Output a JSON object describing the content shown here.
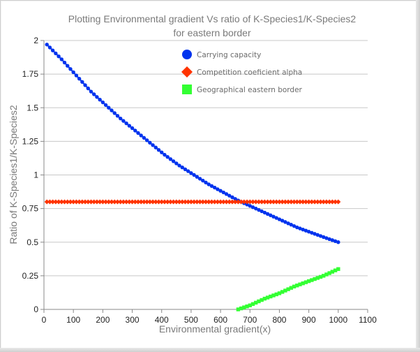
{
  "chart_data": {
    "type": "scatter",
    "title": "Plotting Environmental gradient Vs ratio of K-Species1/K-Species2",
    "subtitle": "for eastern border",
    "xlabel": "Environmental gradient(x)",
    "ylabel": "Ratio of K-Species1/K-Species2",
    "xlim": [
      0,
      1100
    ],
    "ylim": [
      0,
      2
    ],
    "x_ticks": [
      "0",
      "100",
      "200",
      "300",
      "400",
      "500",
      "600",
      "700",
      "800",
      "900",
      "1000",
      "1100"
    ],
    "y_ticks": [
      "0",
      "0.25",
      "0.5",
      "0.75",
      "1",
      "1.25",
      "1.5",
      "1.75",
      "2"
    ],
    "grid": "horizontal",
    "legend_placement": "top-center",
    "series": [
      {
        "name": "Carrying capacity",
        "marker": "circle",
        "color": "#0033ee",
        "x": [
          10,
          60,
          110,
          160,
          210,
          260,
          310,
          360,
          410,
          460,
          510,
          560,
          610,
          660,
          710,
          760,
          810,
          860,
          910,
          960,
          1000
        ],
        "y": [
          1.97,
          1.86,
          1.74,
          1.62,
          1.52,
          1.42,
          1.33,
          1.24,
          1.15,
          1.07,
          1.0,
          0.93,
          0.87,
          0.81,
          0.76,
          0.71,
          0.66,
          0.61,
          0.57,
          0.53,
          0.5
        ]
      },
      {
        "name": "Competition coeficient alpha",
        "marker": "diamond",
        "color": "#ff3300",
        "x": [
          10,
          1000
        ],
        "y": [
          0.8,
          0.8
        ]
      },
      {
        "name": "Geographical eastern border",
        "marker": "square",
        "color": "#33ff33",
        "x": [
          660,
          700,
          750,
          800,
          850,
          900,
          950,
          1000
        ],
        "y": [
          0.0,
          0.03,
          0.08,
          0.12,
          0.17,
          0.21,
          0.25,
          0.3
        ]
      }
    ]
  }
}
